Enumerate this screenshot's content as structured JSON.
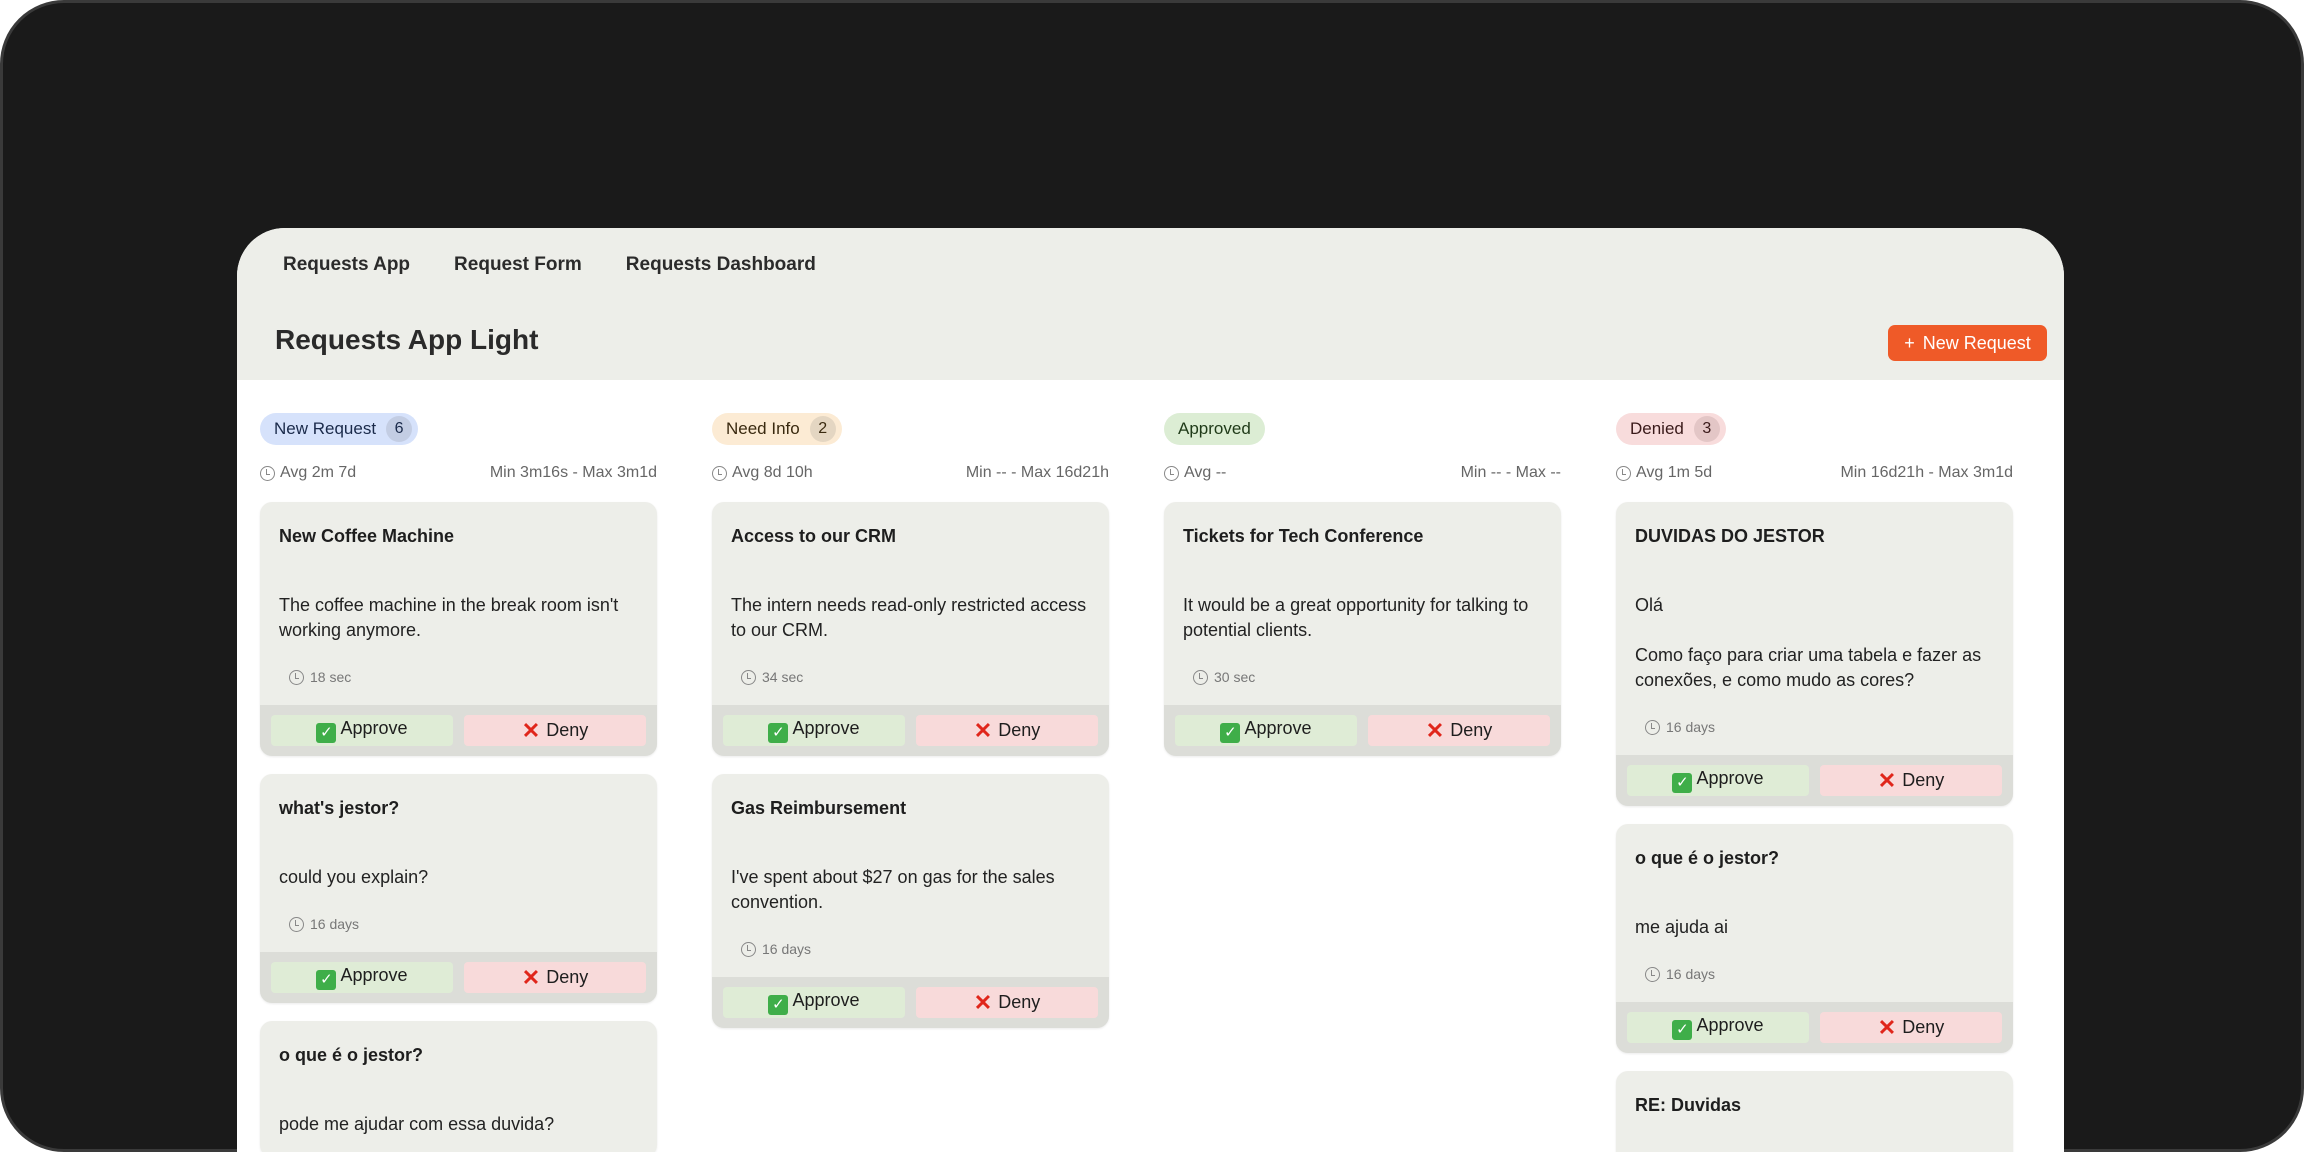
{
  "nav": [
    "Requests App",
    "Request Form",
    "Requests Dashboard"
  ],
  "page_title": "Requests App Light",
  "new_button": {
    "icon": "+",
    "label": "New Request",
    "color": "#ef5a28"
  },
  "actions": {
    "approve": "Approve",
    "deny": "Deny"
  },
  "columns": [
    {
      "label": "New Request",
      "count": "6",
      "bg": "#d6e2fb",
      "cbg": "#c3cde3",
      "fg": "#1a2a4a",
      "avg": "Avg 2m 7d",
      "range": "Min 3m16s - Max 3m1d",
      "cards": [
        {
          "title": "New Coffee Machine",
          "text": "The coffee machine in the break room isn't working anymore.",
          "time": "18 sec"
        },
        {
          "title": "what's jestor?",
          "text": "could you explain?",
          "time": "16 days"
        },
        {
          "title": "o que é o jestor?",
          "text": "pode me ajudar com essa duvida?",
          "time": ""
        }
      ]
    },
    {
      "label": "Need Info",
      "count": "2",
      "bg": "#fcebd4",
      "cbg": "#e4d6c2",
      "fg": "#3a2a10",
      "avg": "Avg 8d 10h",
      "range": "Min -- - Max 16d21h",
      "cards": [
        {
          "title": "Access to our CRM",
          "text": "The intern needs read-only restricted access to our CRM.",
          "time": "34 sec"
        },
        {
          "title": "Gas Reimbursement",
          "text": "I've spent about $27 on gas for the sales convention.",
          "time": "16 days"
        }
      ]
    },
    {
      "label": "Approved",
      "count": "",
      "bg": "#dcedd4",
      "cbg": "",
      "fg": "#1f3a18",
      "avg": "Avg --",
      "range": "Min -- - Max --",
      "cards": [
        {
          "title": "Tickets for Tech Conference",
          "text": "It would be a great opportunity for talking to potential clients.",
          "time": "30 sec"
        }
      ]
    },
    {
      "label": "Denied",
      "count": "3",
      "bg": "#f8dcdc",
      "cbg": "#e3c6c6",
      "fg": "#3a1a1a",
      "avg": "Avg 1m 5d",
      "range": "Min 16d21h - Max 3m1d",
      "cards": [
        {
          "title": "DUVIDAS DO JESTOR",
          "text": "Olá\n\nComo faço para criar uma tabela e fazer as conexões, e como mudo as cores?",
          "time": "16 days"
        },
        {
          "title": "o que é o jestor?",
          "text": "me ajuda ai",
          "time": "16 days"
        },
        {
          "title": "RE: Duvidas",
          "text": "",
          "time": ""
        }
      ]
    }
  ]
}
